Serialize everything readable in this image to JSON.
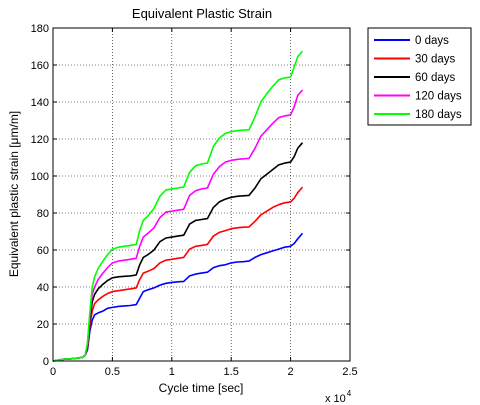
{
  "chart_data": {
    "type": "line",
    "title": "Equivalent Plastic Strain",
    "xlabel": "Cycle time [sec]",
    "ylabel": "Equivalent plastic strain [",
    "ylabel_mu": "μ",
    "ylabel_unit": "m/m]",
    "x_multiplier_text": "x 10",
    "x_multiplier_exp": "4",
    "xlim": [
      0,
      25000
    ],
    "ylim": [
      0,
      180
    ],
    "xticks": [
      0,
      5000,
      10000,
      15000,
      20000,
      25000
    ],
    "xtick_labels": [
      "0",
      "0.5",
      "1",
      "1.5",
      "2",
      "2.5"
    ],
    "yticks": [
      0,
      20,
      40,
      60,
      80,
      100,
      120,
      140,
      160,
      180
    ],
    "ytick_labels": [
      "0",
      "20",
      "40",
      "60",
      "80",
      "100",
      "120",
      "140",
      "160",
      "180"
    ],
    "grid": true,
    "grid_style": "dotted",
    "legend_position": "outside-right-top",
    "x": [
      0,
      500,
      1000,
      1500,
      2000,
      2500,
      2700,
      2900,
      3100,
      3300,
      3500,
      3800,
      4200,
      4600,
      5000,
      5500,
      6000,
      6500,
      7000,
      7300,
      7600,
      8000,
      8500,
      9000,
      9500,
      10000,
      10500,
      11000,
      11500,
      12000,
      12500,
      13000,
      13500,
      14000,
      14500,
      15000,
      15500,
      16000,
      16500,
      17000,
      17500,
      18000,
      18500,
      19000,
      19500,
      20000,
      20300,
      20600,
      21000
    ],
    "series": [
      {
        "name": "0 days",
        "color": "#0000ff",
        "values": [
          0,
          0.5,
          1,
          1.2,
          1.5,
          2,
          3,
          6,
          16,
          22,
          25,
          26,
          27,
          28.5,
          29,
          29.5,
          29.8,
          30,
          30.5,
          34,
          37.5,
          38.5,
          39.5,
          41,
          42,
          42.5,
          42.8,
          43,
          46,
          47,
          47.5,
          48,
          50.5,
          51.5,
          52,
          53,
          53.5,
          53.7,
          54,
          56,
          57.5,
          58.5,
          59.5,
          60.5,
          61.5,
          62,
          63.5,
          66,
          69
        ]
      },
      {
        "name": "30 days",
        "color": "#ff0000",
        "values": [
          0,
          0.5,
          1,
          1.2,
          1.5,
          2,
          3,
          7,
          19,
          27,
          31,
          33,
          35,
          36.5,
          37.5,
          38,
          38.5,
          39,
          39.5,
          44,
          47.5,
          48.5,
          50,
          53,
          54.5,
          55,
          55.5,
          56,
          60.5,
          62,
          62.5,
          63,
          67.5,
          69.5,
          70.5,
          71.5,
          72,
          72.3,
          72.5,
          75.5,
          79,
          81,
          83,
          84.5,
          85.5,
          86,
          88,
          91,
          94
        ]
      },
      {
        "name": "60 days",
        "color": "#000000",
        "values": [
          0,
          0.5,
          1,
          1.2,
          1.5,
          2,
          3,
          8,
          22,
          32,
          36,
          39,
          41.5,
          43.5,
          45,
          45.5,
          45.8,
          46,
          46.5,
          52,
          56,
          57.5,
          60,
          64.5,
          66.5,
          67,
          67.5,
          68,
          74,
          76,
          76.5,
          77,
          83,
          86,
          87.5,
          88.5,
          89,
          89.3,
          89.5,
          93.5,
          98.5,
          101,
          103.5,
          106,
          107,
          107.5,
          110.5,
          115,
          118
        ]
      },
      {
        "name": "120 days",
        "color": "#ff00ff",
        "values": [
          0,
          0.5,
          1,
          1.2,
          1.5,
          2,
          3,
          9,
          24,
          36,
          40,
          44,
          47.5,
          50.5,
          53,
          54,
          54.5,
          55,
          55.5,
          62,
          67,
          69,
          72,
          77.5,
          80.5,
          81,
          81.5,
          82,
          89.5,
          92,
          93,
          93.5,
          101,
          105,
          107.5,
          108.5,
          109,
          109.3,
          109.5,
          115,
          121.5,
          125,
          128.5,
          131.5,
          132.5,
          133,
          137.5,
          143.5,
          146.5
        ]
      },
      {
        "name": "180 days",
        "color": "#00ff00",
        "values": [
          0,
          0.5,
          1,
          1.2,
          1.5,
          2,
          3,
          10,
          26,
          40,
          45.5,
          50,
          54,
          57.5,
          60.5,
          61.5,
          62,
          62.5,
          63,
          70.5,
          76,
          78.5,
          82.5,
          89,
          92.5,
          93,
          93.5,
          94,
          102,
          105.5,
          106.5,
          107,
          116,
          120.5,
          123,
          124,
          124.5,
          124.8,
          125,
          132,
          140,
          144.5,
          148.5,
          152,
          153,
          153.5,
          159,
          164.5,
          167.5
        ]
      }
    ]
  }
}
